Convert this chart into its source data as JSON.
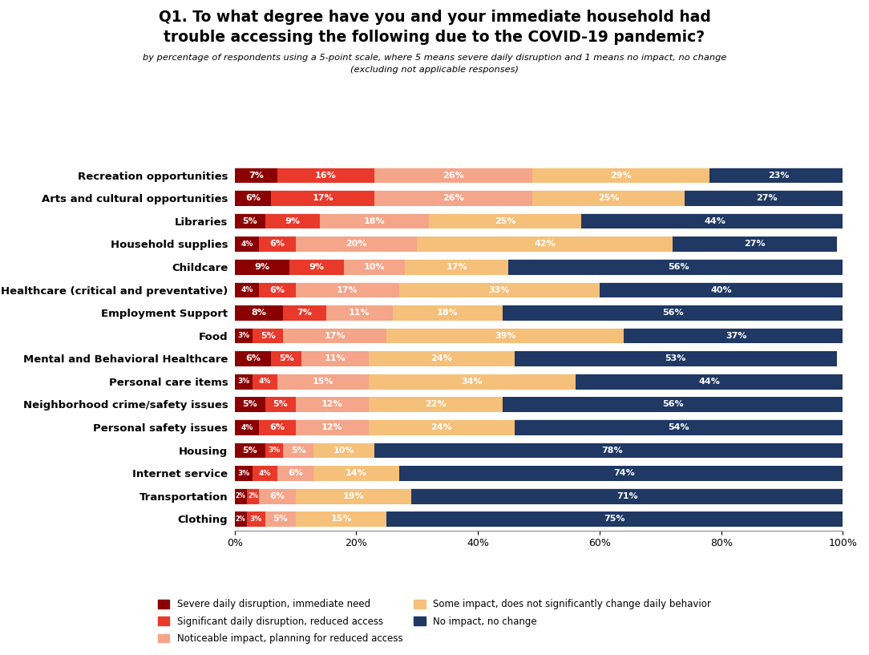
{
  "title_line1": "Q1. To what degree have you and your immediate household had",
  "title_line2": "trouble accessing the following due to the COVID-19 pandemic?",
  "subtitle_line1": "by percentage of respondents using a 5-point scale, where 5 means severe daily disruption and 1 means no impact, no change",
  "subtitle_line2": "(excluding not applicable responses)",
  "categories": [
    "Recreation opportunities",
    "Arts and cultural opportunities",
    "Libraries",
    "Household supplies",
    "Childcare",
    "Healthcare (critical and preventative)",
    "Employment Support",
    "Food",
    "Mental and Behavioral Healthcare",
    "Personal care items",
    "Neighborhood crime/safety issues",
    "Personal safety issues",
    "Housing",
    "Internet service",
    "Transportation",
    "Clothing"
  ],
  "data": {
    "severe": [
      7,
      6,
      5,
      4,
      9,
      4,
      8,
      3,
      6,
      3,
      5,
      4,
      5,
      3,
      2,
      2
    ],
    "significant": [
      16,
      17,
      9,
      6,
      9,
      6,
      7,
      5,
      5,
      4,
      5,
      6,
      3,
      4,
      2,
      3
    ],
    "noticeable": [
      26,
      26,
      18,
      20,
      10,
      17,
      11,
      17,
      11,
      15,
      12,
      12,
      5,
      6,
      6,
      5
    ],
    "some": [
      29,
      25,
      25,
      42,
      17,
      33,
      18,
      39,
      24,
      34,
      22,
      24,
      10,
      14,
      19,
      15
    ],
    "no_impact": [
      23,
      27,
      44,
      27,
      56,
      40,
      56,
      37,
      53,
      44,
      56,
      54,
      78,
      74,
      71,
      75
    ]
  },
  "colors": {
    "severe": "#8B0000",
    "significant": "#E8392A",
    "noticeable": "#F4A58A",
    "some": "#F5C07A",
    "no_impact": "#1F3864"
  },
  "legend_labels": {
    "severe": "Severe daily disruption, immediate need",
    "significant": "Significant daily disruption, reduced access",
    "noticeable": "Noticeable impact, planning for reduced access",
    "some": "Some impact, does not significantly change daily behavior",
    "no_impact": "No impact, no change"
  },
  "bar_height": 0.68,
  "figsize": [
    10.84,
    8.17
  ],
  "dpi": 100
}
